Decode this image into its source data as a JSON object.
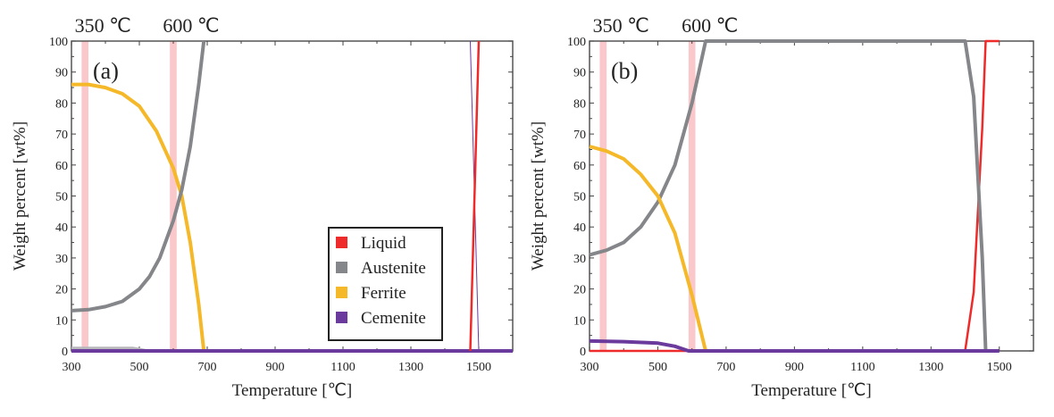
{
  "colors": {
    "Liquid": "#ee2a2a",
    "Austenite": "#85868a",
    "Ferrite": "#f5b829",
    "Cemenite": "#6a3a9c",
    "band": "#f8b4b8",
    "faint": "#b8b8bc"
  },
  "chart_data": [
    {
      "type": "line",
      "panel_label": "(a)",
      "xlabel": "Temperature [℃]",
      "ylabel": "Weight percent [wt%]",
      "xlim": [
        300,
        1600
      ],
      "ylim": [
        0,
        100
      ],
      "xticks": [
        "300",
        "500",
        "700",
        "900",
        "1100",
        "1300",
        "1500"
      ],
      "yticks": [
        "0",
        "10",
        "20",
        "30",
        "40",
        "50",
        "60",
        "70",
        "80",
        "90",
        "100"
      ],
      "bands": [
        {
          "label": "350 ℃",
          "range": [
            330,
            350
          ]
        },
        {
          "label": "600 ℃",
          "range": [
            590,
            610
          ]
        }
      ],
      "legend": {
        "placement": "lower-right",
        "entries": [
          "Liquid",
          "Austenite",
          "Ferrite",
          "Cemenite"
        ]
      },
      "series": [
        {
          "name": "Ferrite",
          "x": [
            300,
            350,
            400,
            450,
            500,
            550,
            600,
            625,
            650,
            675,
            690
          ],
          "y": [
            86,
            86,
            85,
            83,
            79,
            71,
            59,
            50,
            35,
            15,
            0
          ]
        },
        {
          "name": "Austenite",
          "x": [
            300,
            350,
            400,
            450,
            500,
            530,
            560,
            600,
            625,
            650,
            675,
            690
          ],
          "y": [
            13,
            13.3,
            14.3,
            16,
            20,
            24,
            30,
            42,
            52,
            66,
            86,
            100
          ]
        },
        {
          "x": [
            300,
            480,
            520,
            1600
          ],
          "y": [
            0.8,
            0.8,
            0,
            0
          ],
          "faint": true
        },
        {
          "name": "Cemenite",
          "x": [
            300,
            1600
          ],
          "y": [
            0,
            0
          ]
        },
        {
          "x": [
            1475,
            1500
          ],
          "y": [
            100,
            0
          ],
          "thin": true
        },
        {
          "name": "Liquid",
          "x": [
            1475,
            1500
          ],
          "y": [
            0,
            100
          ]
        }
      ]
    },
    {
      "type": "line",
      "panel_label": "(b)",
      "xlabel": "Temperature [℃]",
      "ylabel": "Weight percent [wt%]",
      "xlim": [
        300,
        1600
      ],
      "ylim": [
        0,
        100
      ],
      "xticks": [
        "300",
        "500",
        "700",
        "900",
        "1100",
        "1300",
        "1500"
      ],
      "yticks": [
        "0",
        "10",
        "20",
        "30",
        "40",
        "50",
        "60",
        "70",
        "80",
        "90",
        "100"
      ],
      "bands": [
        {
          "label": "350 ℃",
          "range": [
            330,
            350
          ]
        },
        {
          "label": "600 ℃",
          "range": [
            590,
            610
          ]
        }
      ],
      "series": [
        {
          "name": "Liquid",
          "x": [
            300,
            1400,
            1425,
            1450,
            1460,
            1500
          ],
          "y": [
            0,
            0,
            19,
            72,
            100,
            100
          ]
        },
        {
          "name": "Austenite",
          "x": [
            300,
            350,
            400,
            450,
            500,
            550,
            600,
            640,
            1400,
            1425,
            1450,
            1460
          ],
          "y": [
            31,
            32.5,
            35,
            40,
            48,
            60,
            80,
            100,
            100,
            82,
            30,
            0
          ]
        },
        {
          "name": "Ferrite",
          "x": [
            300,
            350,
            400,
            450,
            500,
            550,
            600,
            640
          ],
          "y": [
            66,
            64.5,
            62,
            57,
            50,
            38,
            18,
            0
          ]
        },
        {
          "name": "Cemenite",
          "x": [
            300,
            400,
            500,
            550,
            590,
            1500
          ],
          "y": [
            3.2,
            3,
            2.5,
            1.5,
            0,
            0
          ]
        }
      ]
    }
  ]
}
